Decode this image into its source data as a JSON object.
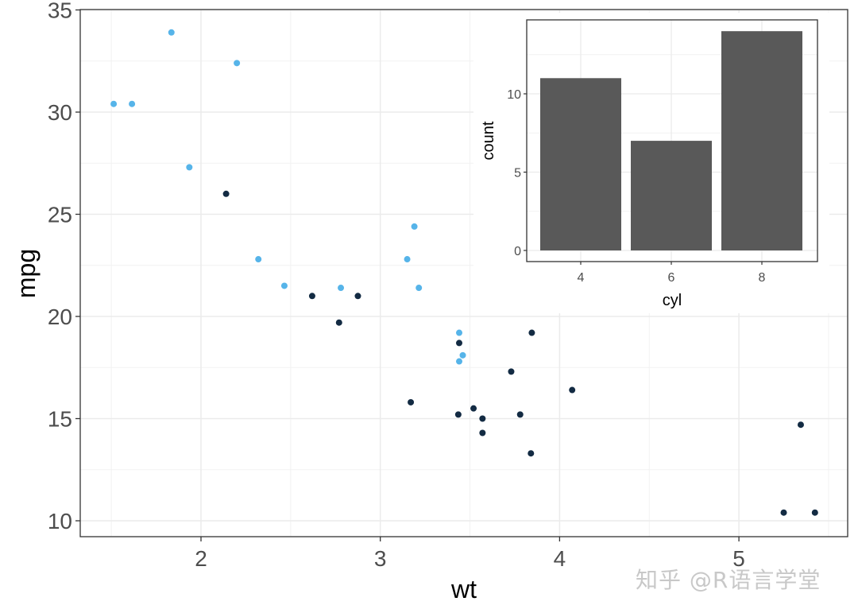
{
  "chart_data": [
    {
      "type": "scatter",
      "title": "",
      "xlabel": "wt",
      "ylabel": "mpg",
      "xlim": [
        1.35,
        5.6
      ],
      "ylim": [
        9.2,
        35.1
      ],
      "x_ticks": [
        2,
        3,
        4,
        5
      ],
      "y_ticks": [
        10,
        15,
        20,
        25,
        30,
        35
      ],
      "grid": true,
      "legend": "none",
      "series": [
        {
          "name": "light-blue",
          "color": "#56B4E9",
          "points": [
            [
              1.513,
              30.4
            ],
            [
              1.615,
              30.4
            ],
            [
              1.835,
              33.9
            ],
            [
              2.2,
              32.4
            ],
            [
              1.935,
              27.3
            ],
            [
              2.32,
              22.8
            ],
            [
              2.465,
              21.5
            ],
            [
              2.78,
              21.4
            ],
            [
              3.15,
              22.8
            ],
            [
              3.19,
              24.4
            ],
            [
              3.215,
              21.4
            ],
            [
              3.44,
              19.2
            ],
            [
              3.44,
              17.8
            ],
            [
              3.46,
              18.1
            ]
          ]
        },
        {
          "name": "dark-navy",
          "color": "#132B43",
          "points": [
            [
              2.14,
              26.0
            ],
            [
              2.62,
              21.0
            ],
            [
              2.875,
              21.0
            ],
            [
              2.77,
              19.7
            ],
            [
              3.44,
              18.7
            ],
            [
              3.845,
              19.2
            ],
            [
              3.73,
              17.3
            ],
            [
              4.07,
              16.4
            ],
            [
              3.17,
              15.8
            ],
            [
              3.435,
              15.2
            ],
            [
              3.52,
              15.5
            ],
            [
              3.57,
              15.0
            ],
            [
              3.78,
              15.2
            ],
            [
              3.57,
              14.3
            ],
            [
              3.84,
              13.3
            ],
            [
              5.345,
              14.7
            ],
            [
              5.25,
              10.4
            ],
            [
              5.424,
              10.4
            ]
          ]
        }
      ]
    },
    {
      "type": "bar",
      "title": "",
      "xlabel": "cyl",
      "ylabel": "count",
      "categories": [
        "4",
        "6",
        "8"
      ],
      "values": [
        11,
        7,
        14
      ],
      "bar_color": "#595959",
      "y_ticks": [
        0,
        5,
        10
      ],
      "ylim": [
        -0.7,
        14.7
      ],
      "grid": true,
      "legend": "none"
    }
  ],
  "watermark": "知乎 @R语言学堂"
}
